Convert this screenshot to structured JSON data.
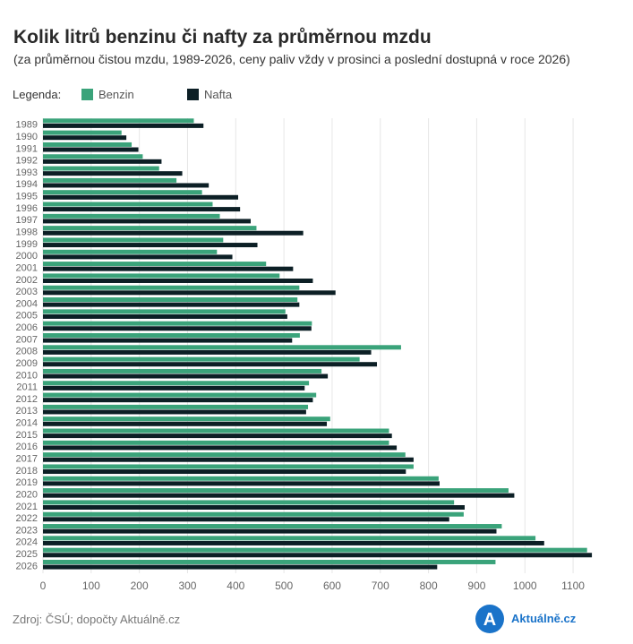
{
  "title": "Kolik litrů benzinu či nafty za průměrnou mzdu",
  "subtitle": "(za průměrnou čistou mzdu, 1989-2026, ceny paliv vždy v prosinci a poslední dostupná v roce 2026)",
  "legend": {
    "title": "Legenda:",
    "items": [
      {
        "label": "Benzin",
        "color": "#3aa37a"
      },
      {
        "label": "Nafta",
        "color": "#0c1f25"
      }
    ]
  },
  "source": "Zdroj: ČSÚ; dopočty Aktuálně.cz",
  "logo": {
    "text": "Aktuálně.cz",
    "mark": "A",
    "color": "#1a73c9"
  },
  "chart_data": {
    "type": "bar",
    "orientation": "horizontal",
    "categories": [
      "1989",
      "1990",
      "1991",
      "1992",
      "1993",
      "1994",
      "1995",
      "1996",
      "1997",
      "1998",
      "1999",
      "2000",
      "2001",
      "2002",
      "2003",
      "2004",
      "2005",
      "2006",
      "2007",
      "2008",
      "2009",
      "2010",
      "2011",
      "2012",
      "2013",
      "2014",
      "2015",
      "2016",
      "2017",
      "2018",
      "2019",
      "2020",
      "2021",
      "2022",
      "2023",
      "2024",
      "2025",
      "2026"
    ],
    "series": [
      {
        "name": "Benzin",
        "color": "#3aa37a",
        "values": [
          313,
          163,
          184,
          207,
          241,
          277,
          330,
          352,
          367,
          443,
          374,
          361,
          463,
          491,
          532,
          528,
          503,
          558,
          533,
          743,
          657,
          578,
          552,
          567,
          550,
          596,
          718,
          718,
          752,
          769,
          821,
          966,
          853,
          873,
          952,
          1022,
          1129,
          939
        ]
      },
      {
        "name": "Nafta",
        "color": "#0c1f25",
        "values": [
          333,
          173,
          198,
          246,
          289,
          344,
          405,
          409,
          431,
          540,
          445,
          393,
          519,
          560,
          607,
          532,
          507,
          557,
          517,
          681,
          693,
          591,
          543,
          560,
          546,
          589,
          724,
          734,
          769,
          753,
          823,
          978,
          875,
          843,
          941,
          1040,
          1139,
          818
        ]
      }
    ],
    "xlim": [
      0,
      1150
    ],
    "xticks": [
      0,
      100,
      200,
      300,
      400,
      500,
      600,
      700,
      800,
      900,
      1000,
      1100
    ],
    "grid": true,
    "legend_position": "top-left"
  }
}
